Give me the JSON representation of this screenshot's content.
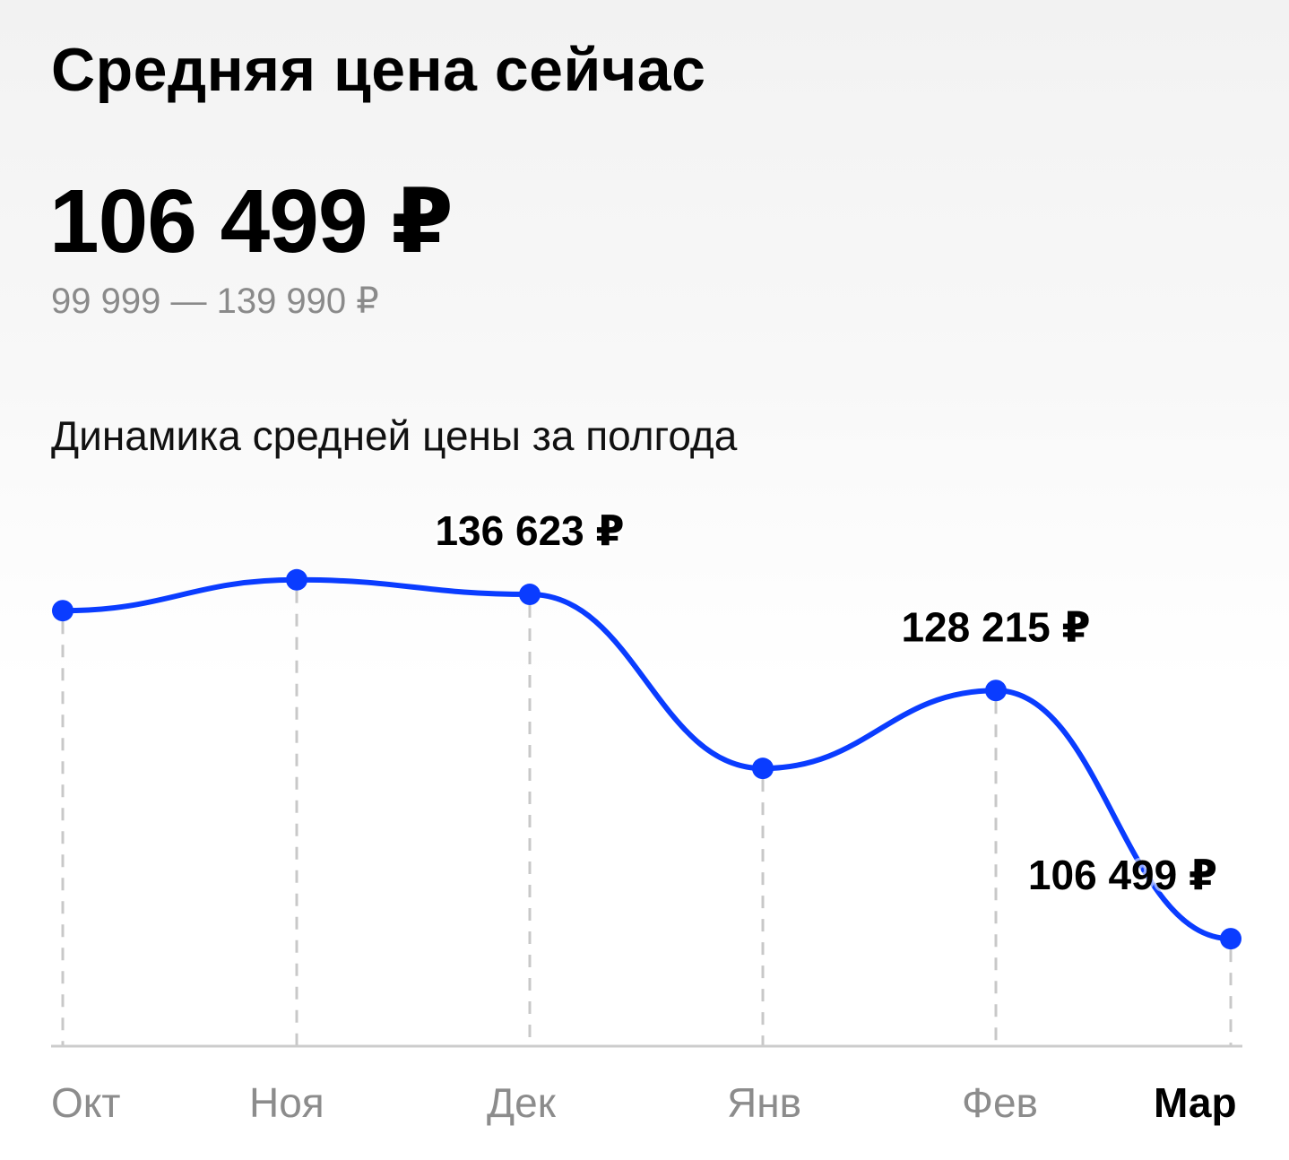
{
  "header": {
    "title": "Средняя цена сейчас",
    "current_price": "106 499 ₽",
    "price_range": "99 999 — 139 990 ₽"
  },
  "chart_section": {
    "subtitle": "Динамика средней цены за полгода"
  },
  "colors": {
    "line": "#0a3cff",
    "point": "#0a3cff",
    "grid": "#c8c8c8",
    "axis": "#cccccc",
    "month_inactive": "#8c8c8c",
    "month_active": "#000000"
  },
  "chart_data": {
    "type": "line",
    "categories": [
      "Окт",
      "Ноя",
      "Дек",
      "Янв",
      "Фев",
      "Мар"
    ],
    "active_category": "Мар",
    "series": [
      {
        "values": [
          135200,
          137900,
          136623,
          121400,
          128215,
          106499
        ]
      }
    ],
    "data_labels": [
      {
        "index": 2,
        "text": "136 623 ₽"
      },
      {
        "index": 4,
        "text": "128 215 ₽"
      },
      {
        "index": 5,
        "text": "106 499 ₽"
      }
    ],
    "ylim": [
      100000,
      140000
    ],
    "grid": "vertical-dashed",
    "legend": "none"
  }
}
